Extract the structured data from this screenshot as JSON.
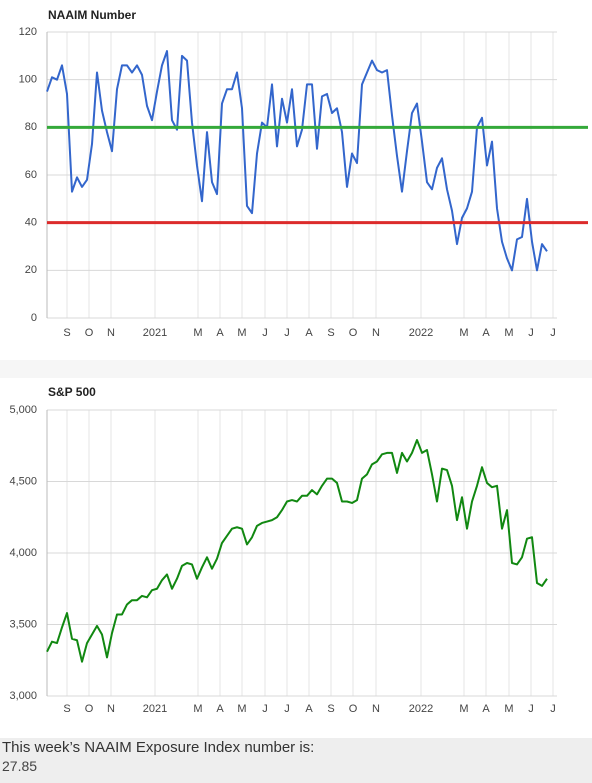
{
  "chart_data": [
    {
      "type": "line",
      "title": "NAAIM Number",
      "color": "#3366cc",
      "ylim": [
        0,
        120
      ],
      "yticks": [
        0,
        20,
        40,
        60,
        80,
        100,
        120
      ],
      "xlim": [
        0,
        102
      ],
      "xticks": [
        {
          "value": 4,
          "label": "S"
        },
        {
          "value": 8.4,
          "label": "O"
        },
        {
          "value": 12.8,
          "label": "N"
        },
        {
          "value": 21.6,
          "label": "2021"
        },
        {
          "value": 30.2,
          "label": "M"
        },
        {
          "value": 34.6,
          "label": "A"
        },
        {
          "value": 39,
          "label": "M"
        },
        {
          "value": 43.6,
          "label": "J"
        },
        {
          "value": 48,
          "label": "J"
        },
        {
          "value": 52.4,
          "label": "A"
        },
        {
          "value": 56.8,
          "label": "S"
        },
        {
          "value": 61.2,
          "label": "O"
        },
        {
          "value": 65.8,
          "label": "N"
        },
        {
          "value": 74.8,
          "label": "2022"
        },
        {
          "value": 83.4,
          "label": "M"
        },
        {
          "value": 87.8,
          "label": "A"
        },
        {
          "value": 92.4,
          "label": "M"
        },
        {
          "value": 96.8,
          "label": "J"
        },
        {
          "value": 101.2,
          "label": "J"
        }
      ],
      "reference_lines": [
        {
          "value": 80,
          "color": "#34a93a"
        },
        {
          "value": 40,
          "color": "#dc2b2b"
        }
      ],
      "values": [
        95,
        101,
        100,
        106,
        94,
        53,
        59,
        55,
        58,
        73,
        103,
        87,
        78,
        70,
        96,
        106,
        106,
        103,
        106,
        102,
        89,
        83,
        95,
        106,
        112,
        83,
        79,
        110,
        108,
        82,
        64,
        49,
        78,
        57,
        52,
        90,
        96,
        96,
        103,
        88,
        47,
        44,
        69,
        82,
        80,
        98,
        72,
        92,
        82,
        96,
        72,
        79,
        98,
        98,
        71,
        93,
        94,
        86,
        88,
        78,
        55,
        69,
        65,
        98,
        103,
        108,
        104,
        103,
        104,
        85,
        68,
        53,
        70,
        86,
        90,
        74,
        57,
        54,
        63,
        67,
        54,
        45,
        31,
        42,
        46,
        53,
        80,
        84,
        64,
        74,
        46,
        32,
        25,
        20,
        33,
        34,
        50,
        32,
        20,
        31,
        28
      ]
    },
    {
      "type": "line",
      "title": "S&P 500",
      "color": "#118811",
      "ylim": [
        3000,
        5000
      ],
      "yticks": [
        {
          "value": 3000,
          "label": "3,000"
        },
        {
          "value": 3500,
          "label": "3,500"
        },
        {
          "value": 4000,
          "label": "4,000"
        },
        {
          "value": 4500,
          "label": "4,500"
        },
        {
          "value": 5000,
          "label": "5,000"
        }
      ],
      "xlim": [
        0,
        102
      ],
      "xticks": [
        {
          "value": 4,
          "label": "S"
        },
        {
          "value": 8.4,
          "label": "O"
        },
        {
          "value": 12.8,
          "label": "N"
        },
        {
          "value": 21.6,
          "label": "2021"
        },
        {
          "value": 30.2,
          "label": "M"
        },
        {
          "value": 34.6,
          "label": "A"
        },
        {
          "value": 39,
          "label": "M"
        },
        {
          "value": 43.6,
          "label": "J"
        },
        {
          "value": 48,
          "label": "J"
        },
        {
          "value": 52.4,
          "label": "A"
        },
        {
          "value": 56.8,
          "label": "S"
        },
        {
          "value": 61.2,
          "label": "O"
        },
        {
          "value": 65.8,
          "label": "N"
        },
        {
          "value": 74.8,
          "label": "2022"
        },
        {
          "value": 83.4,
          "label": "M"
        },
        {
          "value": 87.8,
          "label": "A"
        },
        {
          "value": 92.4,
          "label": "M"
        },
        {
          "value": 96.8,
          "label": "J"
        },
        {
          "value": 101.2,
          "label": "J"
        }
      ],
      "values": [
        3310,
        3380,
        3370,
        3480,
        3580,
        3400,
        3390,
        3240,
        3370,
        3430,
        3490,
        3430,
        3270,
        3440,
        3570,
        3570,
        3640,
        3670,
        3670,
        3700,
        3690,
        3740,
        3750,
        3810,
        3850,
        3750,
        3820,
        3910,
        3930,
        3920,
        3820,
        3900,
        3970,
        3890,
        3960,
        4070,
        4120,
        4170,
        4180,
        4170,
        4060,
        4110,
        4190,
        4210,
        4220,
        4230,
        4250,
        4300,
        4360,
        4370,
        4360,
        4400,
        4400,
        4440,
        4410,
        4470,
        4520,
        4520,
        4490,
        4360,
        4360,
        4350,
        4370,
        4520,
        4550,
        4620,
        4640,
        4690,
        4700,
        4700,
        4560,
        4700,
        4640,
        4700,
        4790,
        4700,
        4720,
        4550,
        4360,
        4590,
        4580,
        4470,
        4230,
        4390,
        4170,
        4360,
        4470,
        4600,
        4490,
        4460,
        4470,
        4170,
        4300,
        3930,
        3920,
        3970,
        4100,
        4110,
        3790,
        3770,
        3820
      ]
    }
  ],
  "footer": {
    "label": "This week’s NAAIM Exposure Index number is:",
    "value": 27.85
  }
}
